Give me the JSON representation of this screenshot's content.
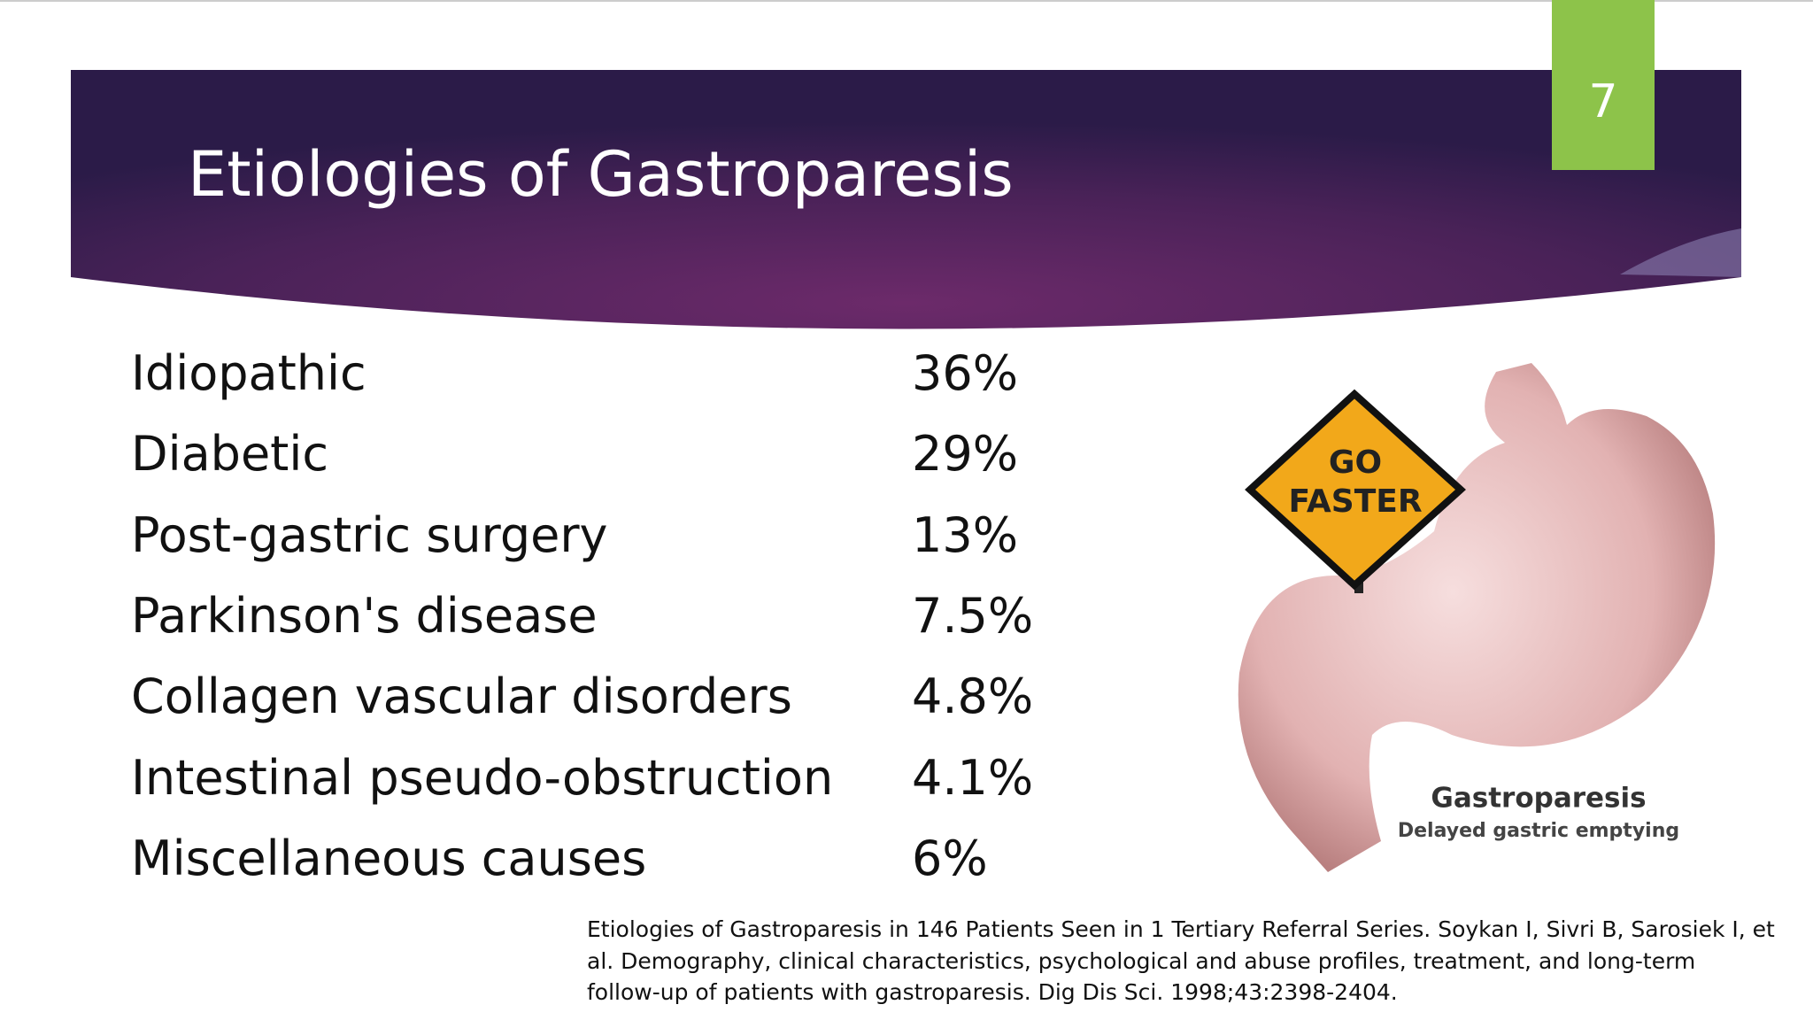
{
  "slide_number": "7",
  "title": "Etiologies of Gastroparesis",
  "table": {
    "rows": [
      [
        "Idiopathic",
        "36%"
      ],
      [
        "Diabetic",
        "29%"
      ],
      [
        "Post-gastric surgery",
        "13%"
      ],
      [
        "Parkinson's disease",
        "7.5%"
      ],
      [
        "Collagen vascular disorders",
        "4.8%"
      ],
      [
        "Intestinal pseudo-obstruction",
        "4.1%"
      ],
      [
        "Miscellaneous causes",
        "6%"
      ]
    ]
  },
  "illustration": {
    "sign_line1": "GO",
    "sign_line2": "FASTER",
    "caption": "Gastroparesis",
    "subcaption": "Delayed gastric emptying"
  },
  "citation": [
    "Etiologies of Gastroparesis in 146 Patients Seen in 1 Tertiary Referral Series. Soykan I, Sivri B, Sarosiek I, et",
    "al. Demography, clinical characteristics, psychological and abuse profiles, treatment, and long-term",
    "follow-up of patients with gastroparesis. Dig Dis Sci. 1998;43:2398-2404."
  ]
}
